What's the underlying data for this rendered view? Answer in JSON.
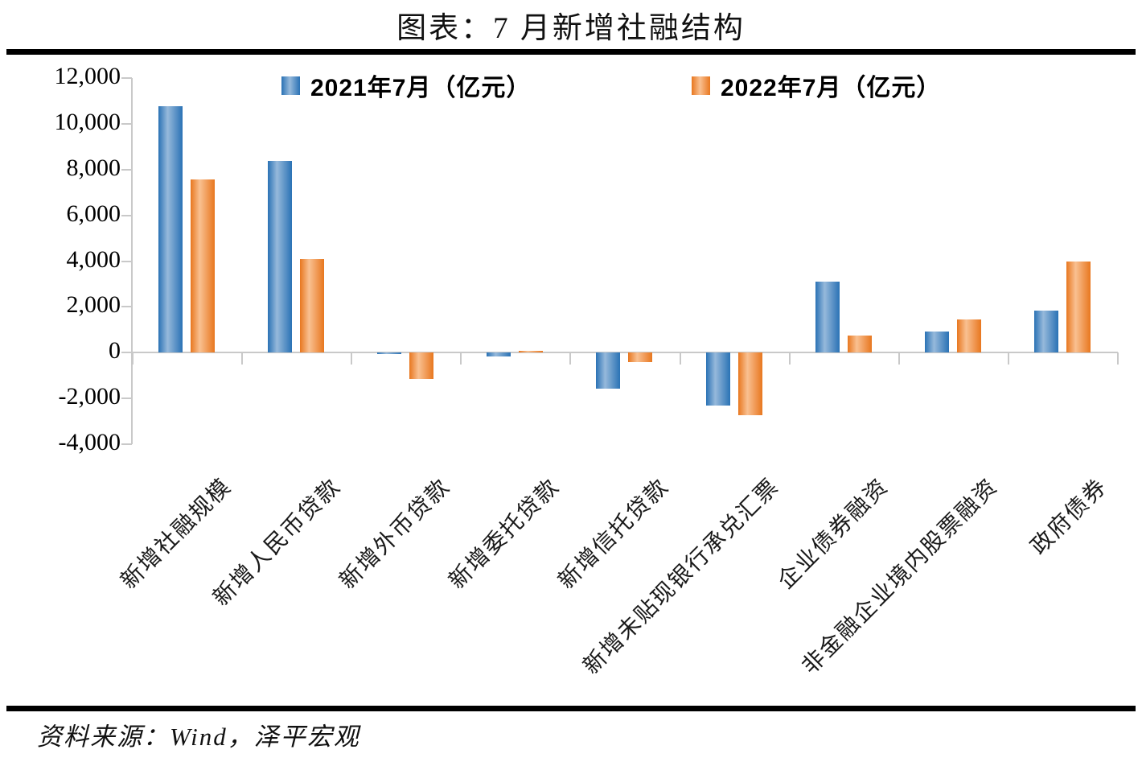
{
  "page": {
    "title": "图表：7 月新增社融结构",
    "source": "资料来源：Wind，泽平宏观"
  },
  "chart_data": {
    "type": "bar",
    "title": "图表：7 月新增社融结构",
    "unit": "亿元",
    "categories": [
      "新增社融规模",
      "新增人民币贷款",
      "新增外币贷款",
      "新增委托贷款",
      "新增信托贷款",
      "新增未贴现银行承兑汇票",
      "企业债券融资",
      "非金融企业境内股票融资",
      "政府债券"
    ],
    "series": [
      {
        "name": "2021年7月（亿元）",
        "values": [
          10752,
          8391,
          -78,
          -151,
          -1571,
          -2316,
          3091,
          938,
          1820
        ],
        "edge_color": "#2a72b5",
        "mid_color": "#96b9db"
      },
      {
        "name": "2022年7月（亿元）",
        "values": [
          7561,
          4088,
          -1137,
          89,
          -398,
          -2744,
          734,
          1437,
          3998
        ],
        "edge_color": "#e8771f",
        "mid_color": "#f9c091"
      }
    ],
    "ylim": [
      -4000,
      12000
    ],
    "ytick_step": 2000,
    "ytick_labels": [
      "12,000",
      "10,000",
      "8,000",
      "6,000",
      "4,000",
      "2,000",
      "0",
      "-2,000",
      "-4,000"
    ],
    "legend_position": "top",
    "grid": false,
    "axis_color": "#c9c9c9"
  }
}
